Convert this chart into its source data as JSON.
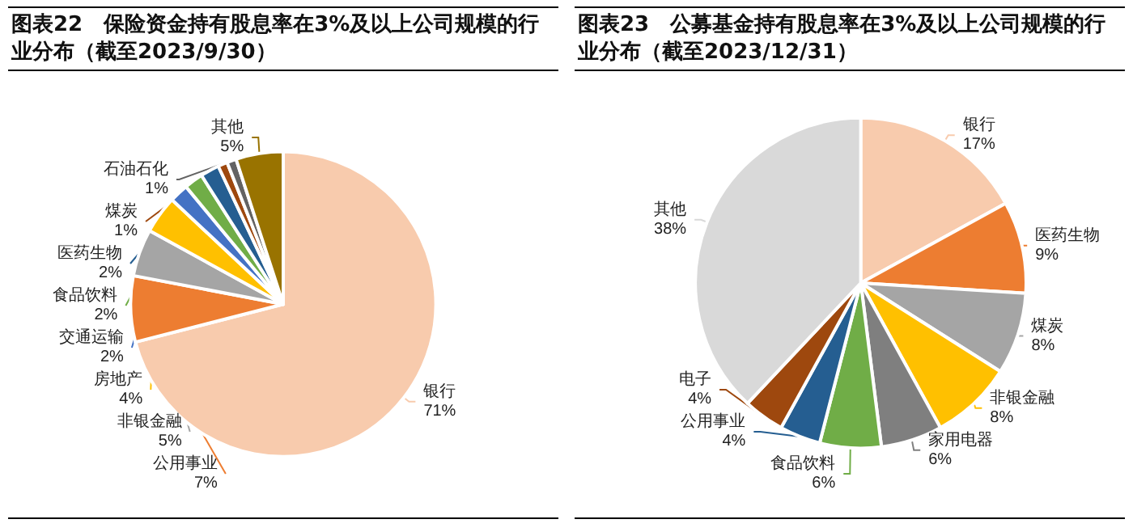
{
  "chart_data": [
    {
      "type": "pie",
      "title": "图表22　保险资金持有股息率在3%及以上公司规模的行业分布（截至2023/9/30）",
      "categories": [
        "银行",
        "公用事业",
        "非银金融",
        "房地产",
        "交通运输",
        "食品饮料",
        "医药生物",
        "煤炭",
        "石油石化",
        "其他"
      ],
      "values": [
        71,
        7,
        5,
        4,
        2,
        2,
        2,
        1,
        1,
        5
      ],
      "colors": [
        "#f8cbad",
        "#ed7d31",
        "#a5a5a5",
        "#ffc000",
        "#4472c4",
        "#70ad47",
        "#255e91",
        "#9e480e",
        "#636363",
        "#997300"
      ],
      "value_labels": [
        "71%",
        "7%",
        "5%",
        "4%",
        "2%",
        "2%",
        "2%",
        "1%",
        "1%",
        "5%"
      ],
      "legend": false
    },
    {
      "type": "pie",
      "title": "图表23　公募基金持有股息率在3%及以上公司规模的行业分布（截至2023/12/31）",
      "categories": [
        "银行",
        "医药生物",
        "煤炭",
        "非银金融",
        "家用电器",
        "食品饮料",
        "公用事业",
        "电子",
        "其他"
      ],
      "values": [
        17,
        9,
        8,
        8,
        6,
        6,
        4,
        4,
        38
      ],
      "colors": [
        "#f8cbad",
        "#ed7d31",
        "#a5a5a5",
        "#ffc000",
        "#7f7f7f",
        "#70ad47",
        "#255e91",
        "#9e480e",
        "#d9d9d9"
      ],
      "value_labels": [
        "17%",
        "9%",
        "8%",
        "8%",
        "6%",
        "6%",
        "4%",
        "4%",
        "38%"
      ],
      "legend": false
    }
  ]
}
